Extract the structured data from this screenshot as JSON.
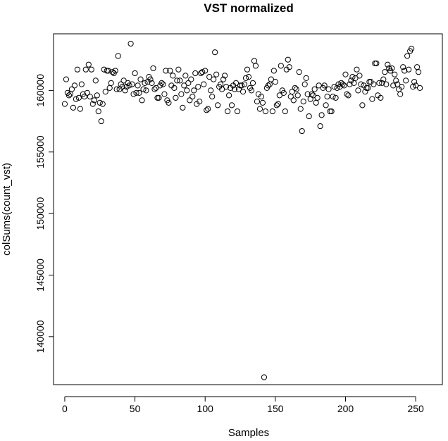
{
  "chart_data": {
    "type": "scatter",
    "title": "VST normalized",
    "xlabel": "Samples",
    "ylabel": "colSums(count_vst)",
    "xlim": [
      -8,
      269
    ],
    "ylim": [
      136100,
      164600
    ],
    "x_ticks": [
      0,
      50,
      100,
      150,
      200,
      250
    ],
    "y_ticks": [
      140000,
      145000,
      150000,
      155000,
      160000
    ],
    "marker": "open-circle",
    "grid": false,
    "legend": "none",
    "colors": {
      "points": "#000000",
      "axes": "#000000",
      "background": "#ffffff"
    },
    "y": [
      158900,
      160900,
      159800,
      159600,
      159700,
      160100,
      158600,
      160400,
      159300,
      161700,
      159400,
      158500,
      160500,
      159700,
      159500,
      161700,
      159800,
      162100,
      159500,
      161700,
      158900,
      159200,
      160800,
      159600,
      158300,
      159000,
      157500,
      158900,
      161700,
      159900,
      161600,
      161600,
      160200,
      160600,
      161500,
      161400,
      161600,
      160100,
      162800,
      160100,
      160500,
      160300,
      160800,
      160000,
      160300,
      160600,
      160400,
      163800,
      160500,
      159700,
      161400,
      159800,
      160400,
      159800,
      160900,
      159200,
      160100,
      160600,
      160000,
      160700,
      161100,
      160900,
      160600,
      161800,
      160100,
      160200,
      159400,
      159400,
      160400,
      160600,
      160500,
      159700,
      161600,
      159200,
      159000,
      161600,
      160400,
      161200,
      160200,
      159400,
      160800,
      161700,
      160800,
      159700,
      158600,
      160400,
      161200,
      160000,
      160600,
      159200,
      160900,
      159500,
      160000,
      161400,
      158900,
      160300,
      159100,
      161400,
      161500,
      160500,
      161600,
      158400,
      158500,
      161100,
      160000,
      159500,
      160900,
      163100,
      161300,
      158800,
      160300,
      160500,
      160100,
      160900,
      161200,
      160300,
      158300,
      159600,
      160200,
      158800,
      160400,
      160100,
      160600,
      158300,
      160100,
      160400,
      160400,
      159900,
      160500,
      161000,
      161700,
      161100,
      160200,
      160000,
      160600,
      162400,
      162000,
      159100,
      159700,
      158500,
      159500,
      159000,
      158300,
      160200,
      160400,
      160500,
      160900,
      158300,
      161600,
      160700,
      158800,
      158900,
      159600,
      162000,
      160000,
      159800,
      158300,
      161700,
      162500,
      161900,
      159500,
      159900,
      159200,
      160200,
      160100,
      159600,
      161500,
      158500,
      156700,
      159100,
      160500,
      161000,
      159700,
      157900,
      159300,
      159700,
      159600,
      160100,
      159000,
      159400,
      160400,
      157100,
      158000,
      160200,
      160400,
      158800,
      159500,
      160100,
      158300,
      158300,
      159500,
      160300,
      159400,
      160200,
      160500,
      160300,
      160600,
      160500,
      160400,
      161300,
      159700,
      159600,
      160500,
      160800,
      161100,
      160600,
      161000,
      161700,
      160000,
      161200,
      160500,
      158800,
      160400,
      159900,
      160200,
      160200,
      160700,
      160700,
      159300,
      160500,
      162200,
      162200,
      159600,
      160600,
      159400,
      160600,
      160900,
      161500,
      160500,
      162100,
      161800,
      161600,
      161800,
      160400,
      161300,
      160800,
      160500,
      160100,
      159700,
      160300,
      161900,
      161600,
      160800,
      162800,
      161700,
      163200,
      163400,
      160300,
      160700,
      160400,
      161900,
      161500,
      160200
    ],
    "outlier": {
      "x": 142,
      "y": 136700
    }
  }
}
